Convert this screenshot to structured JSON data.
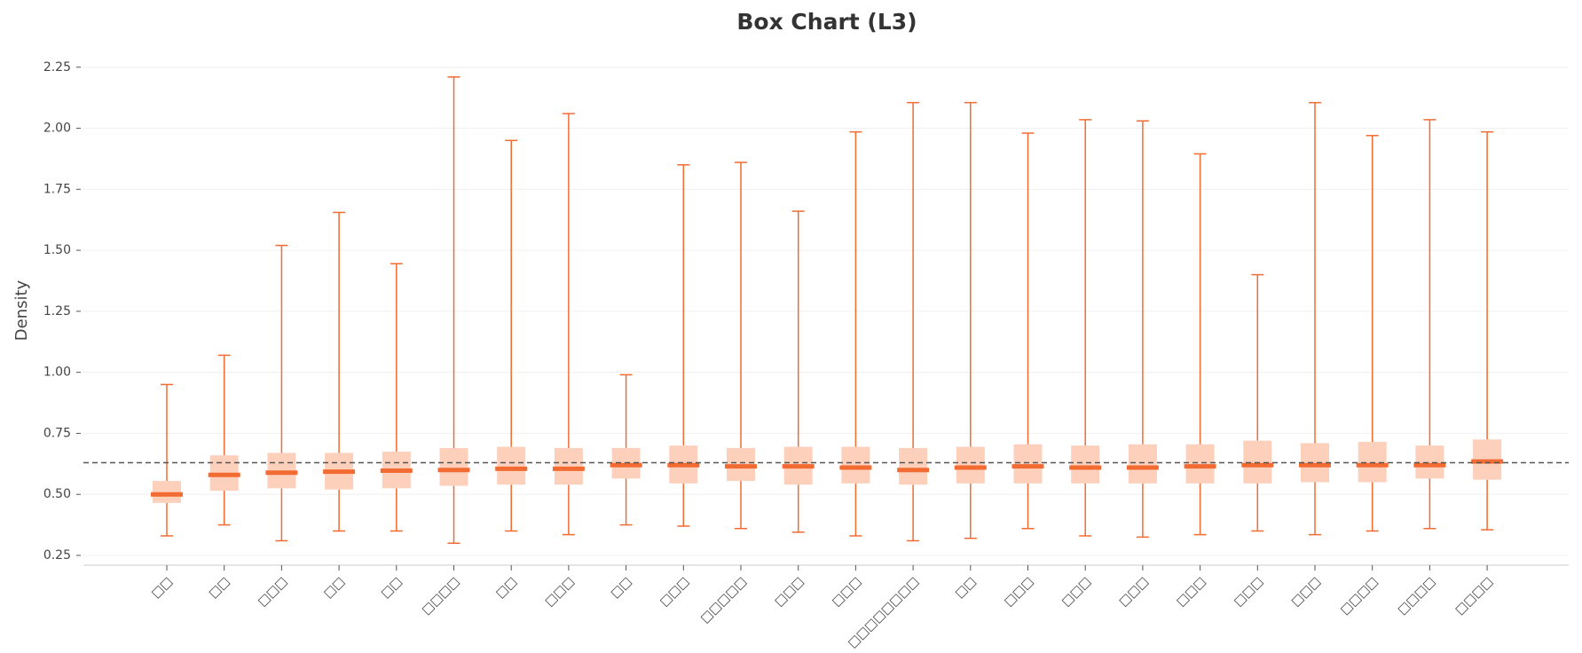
{
  "chart_data": {
    "type": "box",
    "title": "Box Chart (L3)",
    "y_label": "Density",
    "categories": [
      "□□",
      "□□",
      "□□□",
      "□□",
      "□□",
      "□□□□",
      "□□",
      "□□□",
      "□□",
      "□□□",
      "□□□□□",
      "□□□",
      "□□□",
      "□□□□□□□□",
      "□□",
      "□□□",
      "□□□",
      "□□□",
      "□□□",
      "□□□",
      "□□□",
      "□□□□",
      "□□□□",
      "□□□□"
    ],
    "boxes": [
      {
        "low": 0.33,
        "q1": 0.465,
        "median": 0.5,
        "q3": 0.555,
        "high": 0.95
      },
      {
        "low": 0.375,
        "q1": 0.515,
        "median": 0.58,
        "q3": 0.66,
        "high": 1.07
      },
      {
        "low": 0.31,
        "q1": 0.525,
        "median": 0.589,
        "q3": 0.67,
        "high": 1.52
      },
      {
        "low": 0.35,
        "q1": 0.52,
        "median": 0.593,
        "q3": 0.67,
        "high": 1.655
      },
      {
        "low": 0.35,
        "q1": 0.525,
        "median": 0.597,
        "q3": 0.675,
        "high": 1.445
      },
      {
        "low": 0.3,
        "q1": 0.535,
        "median": 0.6,
        "q3": 0.69,
        "high": 2.21
      },
      {
        "low": 0.35,
        "q1": 0.54,
        "median": 0.605,
        "q3": 0.695,
        "high": 1.95
      },
      {
        "low": 0.335,
        "q1": 0.54,
        "median": 0.605,
        "q3": 0.69,
        "high": 2.06
      },
      {
        "low": 0.375,
        "q1": 0.565,
        "median": 0.62,
        "q3": 0.69,
        "high": 0.99
      },
      {
        "low": 0.37,
        "q1": 0.545,
        "median": 0.62,
        "q3": 0.7,
        "high": 1.85
      },
      {
        "low": 0.36,
        "q1": 0.555,
        "median": 0.615,
        "q3": 0.69,
        "high": 1.86
      },
      {
        "low": 0.345,
        "q1": 0.54,
        "median": 0.615,
        "q3": 0.695,
        "high": 1.66
      },
      {
        "low": 0.33,
        "q1": 0.545,
        "median": 0.61,
        "q3": 0.695,
        "high": 1.985
      },
      {
        "low": 0.31,
        "q1": 0.54,
        "median": 0.6,
        "q3": 0.69,
        "high": 2.105
      },
      {
        "low": 0.32,
        "q1": 0.545,
        "median": 0.61,
        "q3": 0.695,
        "high": 2.105
      },
      {
        "low": 0.36,
        "q1": 0.545,
        "median": 0.615,
        "q3": 0.705,
        "high": 1.98
      },
      {
        "low": 0.33,
        "q1": 0.545,
        "median": 0.61,
        "q3": 0.7,
        "high": 2.035
      },
      {
        "low": 0.325,
        "q1": 0.545,
        "median": 0.61,
        "q3": 0.705,
        "high": 2.03
      },
      {
        "low": 0.335,
        "q1": 0.545,
        "median": 0.615,
        "q3": 0.705,
        "high": 1.895
      },
      {
        "low": 0.35,
        "q1": 0.545,
        "median": 0.62,
        "q3": 0.72,
        "high": 1.4
      },
      {
        "low": 0.335,
        "q1": 0.55,
        "median": 0.62,
        "q3": 0.71,
        "high": 2.105
      },
      {
        "low": 0.35,
        "q1": 0.55,
        "median": 0.62,
        "q3": 0.715,
        "high": 1.97
      },
      {
        "low": 0.36,
        "q1": 0.565,
        "median": 0.62,
        "q3": 0.7,
        "high": 2.035
      },
      {
        "low": 0.355,
        "q1": 0.56,
        "median": 0.635,
        "q3": 0.725,
        "high": 1.985
      }
    ],
    "box_color": "#fdd0bc",
    "median_color": "#f26b32",
    "whisker_color": "#f26b32",
    "reference_line": 0.63,
    "reference_color": "#555",
    "ylim": [
      0.21,
      2.3
    ],
    "yticks": [
      0.25,
      {
        "value": 0.5,
        "label": "0.50"
      },
      0.75,
      {
        "value": 1,
        "label": "1.00"
      },
      1.25,
      {
        "value": 1.5,
        "label": "1.50"
      },
      1.75,
      {
        "value": 2,
        "label": "2.00"
      },
      2.25
    ],
    "grid": true
  }
}
